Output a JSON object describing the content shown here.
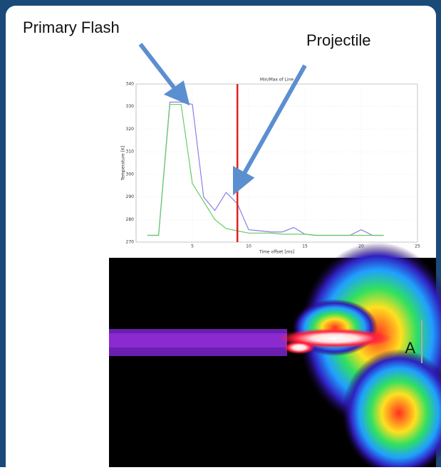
{
  "chart_data": {
    "type": "line",
    "title": "Min/Max of Line",
    "x_label": "Time offset [ms]",
    "y_label": "Temperature [K]",
    "x": [
      1,
      2,
      3,
      4,
      5,
      6,
      7,
      8,
      9,
      10,
      11,
      12,
      13,
      14,
      15,
      16,
      17,
      18,
      19,
      20,
      21,
      22
    ],
    "series": [
      {
        "color": "#8a80e8",
        "values": [
          273,
          273,
          332,
          332,
          331,
          290,
          284,
          292,
          287,
          275.5,
          275,
          274.5,
          274.5,
          276.5,
          273.5,
          273,
          273,
          273,
          273,
          275.5,
          273,
          273
        ]
      },
      {
        "color": "#66cc66",
        "values": [
          273,
          273,
          331,
          331,
          296,
          288,
          280,
          276,
          275,
          274,
          274,
          274,
          273.5,
          273.5,
          273.5,
          273,
          273,
          273,
          273,
          273,
          273,
          273
        ]
      }
    ],
    "vline": {
      "x": 9,
      "color": "#e02020"
    },
    "xlim": [
      0,
      25
    ],
    "xticks": [
      5,
      10,
      15,
      20,
      25
    ],
    "ylim": [
      270,
      340
    ],
    "yticks": [
      270,
      280,
      290,
      300,
      310,
      320,
      330,
      340
    ],
    "grid": true
  },
  "labels": {
    "primary": "Primary Flash",
    "projectile": "Projectile",
    "marker": "A"
  }
}
